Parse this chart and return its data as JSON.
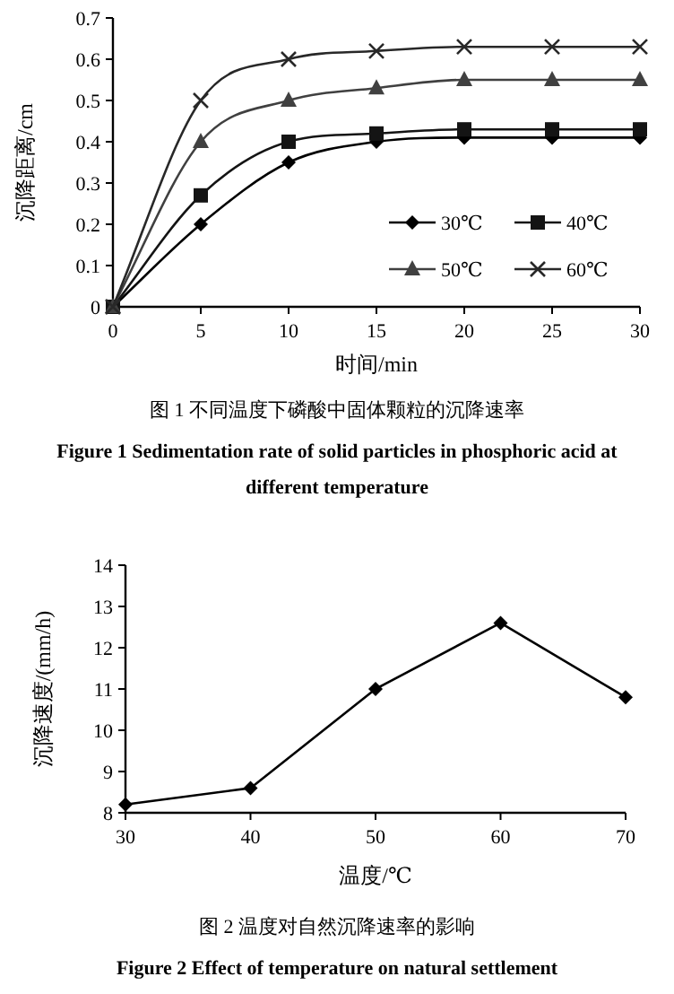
{
  "chart_data": [
    {
      "type": "line",
      "title": "图 1  不同温度下磷酸中固体颗粒的沉降速率",
      "subtitle": "Figure 1  Sedimentation rate of solid particles in phosphoric acid at different temperature",
      "xlabel": "时间/min",
      "ylabel": "沉降距离/cm",
      "x": [
        0,
        5,
        10,
        15,
        20,
        25,
        30
      ],
      "xlim": [
        0,
        30
      ],
      "xticks": [
        0,
        5,
        10,
        15,
        20,
        25,
        30
      ],
      "ylim": [
        0,
        0.7
      ],
      "yticks": [
        0,
        0.1,
        0.2,
        0.3,
        0.4,
        0.5,
        0.6,
        0.7
      ],
      "legend": "bottom right",
      "series": [
        {
          "name": "30℃",
          "color": "#000000",
          "marker": "diamond",
          "values": [
            0,
            0.2,
            0.35,
            0.4,
            0.41,
            0.41,
            0.41
          ]
        },
        {
          "name": "40℃",
          "color": "#141414",
          "marker": "square",
          "values": [
            0,
            0.27,
            0.4,
            0.42,
            0.43,
            0.43,
            0.43
          ]
        },
        {
          "name": "50℃",
          "color": "#404040",
          "marker": "triangle",
          "values": [
            0,
            0.4,
            0.5,
            0.53,
            0.55,
            0.55,
            0.55
          ]
        },
        {
          "name": "60℃",
          "color": "#282828",
          "marker": "cross",
          "values": [
            0,
            0.5,
            0.6,
            0.62,
            0.63,
            0.63,
            0.63
          ]
        }
      ]
    },
    {
      "type": "line",
      "title": "图 2  温度对自然沉降速率的影响",
      "subtitle": "Figure 2  Effect of temperature on natural settlement",
      "xlabel": "温度/℃",
      "ylabel": "沉降速度/(mm/h)",
      "x": [
        30,
        40,
        50,
        60,
        70
      ],
      "xlim": [
        30,
        70
      ],
      "xticks": [
        30,
        40,
        50,
        60,
        70
      ],
      "ylim": [
        8,
        14
      ],
      "yticks": [
        8,
        9,
        10,
        11,
        12,
        13,
        14
      ],
      "marker": "diamond",
      "series": [
        {
          "color": "#000000",
          "values": [
            8.2,
            8.6,
            11.0,
            12.6,
            10.8
          ]
        }
      ]
    }
  ]
}
